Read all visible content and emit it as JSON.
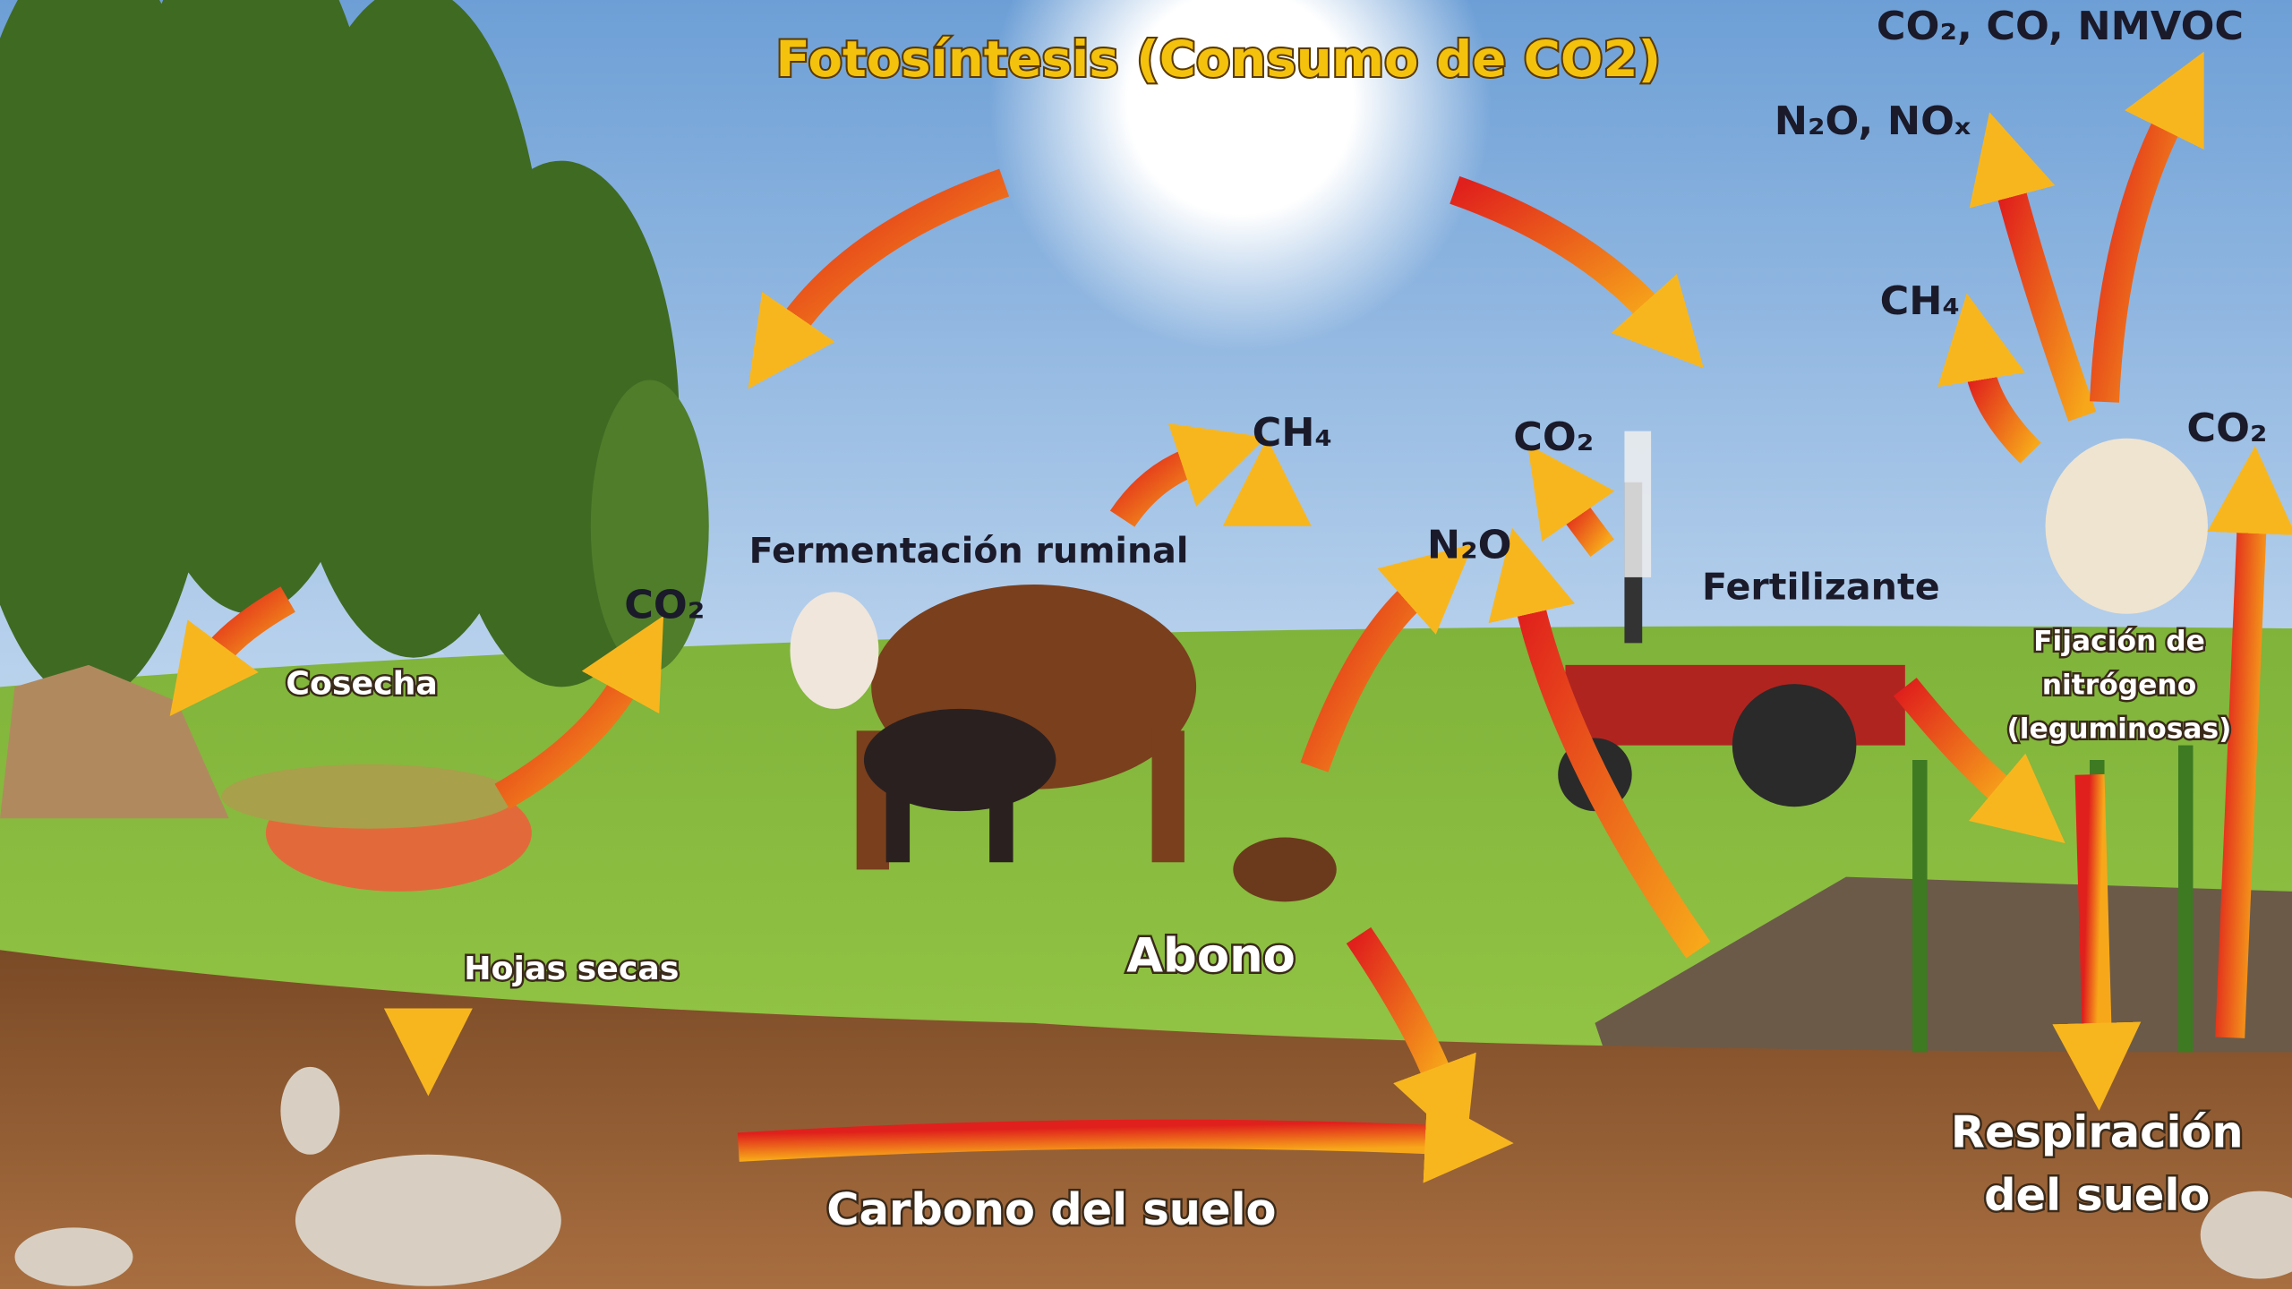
{
  "title": "Fotosíntesis  (Consumo de CO2)",
  "labels": {
    "fermentacion": "Fermentación ruminal",
    "cosecha": "Cosecha",
    "hojas": "Hojas secas",
    "abono": "Abono",
    "carbono": "Carbono del suelo",
    "fertilizante": "Fertilizante",
    "fijacion": [
      "Fijación de",
      "nitrógeno",
      "(leguminosas)"
    ],
    "respiracion": [
      "Respiración",
      "del suelo"
    ]
  },
  "gases": {
    "co2_left": "CO₂",
    "ch4_mid": "CH₄",
    "co2_mid": "CO₂",
    "n2o_mid": "N₂O",
    "ch4_right": "CH₄",
    "n2o_nox": "N₂O, NOₓ",
    "co2_top": "CO₂, CO, NMVOC",
    "co2_right": "CO₂"
  }
}
